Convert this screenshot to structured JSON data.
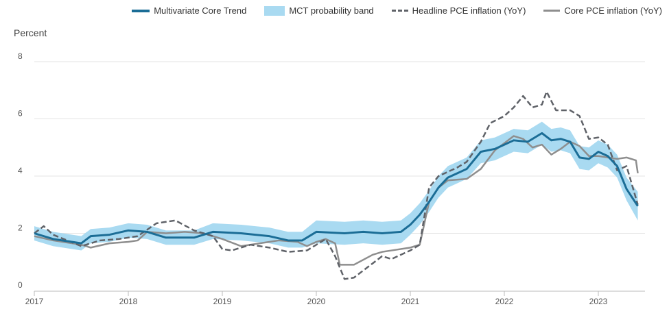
{
  "chart_data": {
    "type": "line",
    "title": "",
    "ylabel": "Percent",
    "xlabel": "",
    "xlim": [
      2017,
      2023.6
    ],
    "ylim": [
      0,
      8
    ],
    "yticks": [
      "0",
      "2",
      "4",
      "6",
      "8"
    ],
    "xticks": [
      "2017",
      "2018",
      "2019",
      "2020",
      "2021",
      "2022",
      "2023"
    ],
    "grid": "horizontal",
    "legend_position": "top-right",
    "colors": {
      "mct": "#1b6d96",
      "band": "#a9daf1",
      "headline": "#5f6268",
      "core": "#8e8e8e"
    },
    "series": [
      {
        "name": "Multivariate Core Trend",
        "style": "solid",
        "x": [
          2017.0,
          2017.2,
          2017.5,
          2017.6,
          2017.8,
          2018.0,
          2018.2,
          2018.4,
          2018.7,
          2018.9,
          2019.2,
          2019.5,
          2019.7,
          2019.85,
          2020.0,
          2020.3,
          2020.5,
          2020.7,
          2020.9,
          2021.0,
          2021.1,
          2021.2,
          2021.3,
          2021.4,
          2021.5,
          2021.6,
          2021.75,
          2021.9,
          2022.0,
          2022.1,
          2022.25,
          2022.4,
          2022.5,
          2022.6,
          2022.7,
          2022.8,
          2022.9,
          2023.0,
          2023.1,
          2023.2,
          2023.3,
          2023.42
        ],
        "y": [
          2.0,
          1.8,
          1.65,
          1.9,
          1.95,
          2.1,
          2.05,
          1.85,
          1.85,
          2.05,
          2.0,
          1.9,
          1.75,
          1.75,
          2.05,
          2.0,
          2.05,
          2.0,
          2.05,
          2.3,
          2.65,
          3.1,
          3.6,
          3.95,
          4.1,
          4.25,
          4.85,
          4.95,
          5.1,
          5.25,
          5.2,
          5.5,
          5.25,
          5.3,
          5.2,
          4.65,
          4.6,
          4.85,
          4.7,
          4.35,
          3.55,
          2.95
        ]
      },
      {
        "name": "MCT probability band",
        "style": "band",
        "x": [
          2017.0,
          2017.2,
          2017.5,
          2017.6,
          2017.8,
          2018.0,
          2018.2,
          2018.4,
          2018.7,
          2018.9,
          2019.2,
          2019.5,
          2019.7,
          2019.85,
          2020.0,
          2020.3,
          2020.5,
          2020.7,
          2020.9,
          2021.0,
          2021.1,
          2021.2,
          2021.3,
          2021.4,
          2021.5,
          2021.6,
          2021.75,
          2021.9,
          2022.0,
          2022.1,
          2022.25,
          2022.4,
          2022.5,
          2022.6,
          2022.7,
          2022.8,
          2022.9,
          2023.0,
          2023.1,
          2023.2,
          2023.3,
          2023.42
        ],
        "lower": [
          1.75,
          1.55,
          1.4,
          1.65,
          1.7,
          1.85,
          1.8,
          1.6,
          1.6,
          1.8,
          1.75,
          1.65,
          1.5,
          1.5,
          1.65,
          1.6,
          1.65,
          1.6,
          1.65,
          1.95,
          2.3,
          2.75,
          3.25,
          3.6,
          3.75,
          3.9,
          4.45,
          4.55,
          4.7,
          4.85,
          4.8,
          5.1,
          4.85,
          4.9,
          4.8,
          4.25,
          4.2,
          4.45,
          4.3,
          3.95,
          3.15,
          2.45
        ],
        "upper": [
          2.25,
          2.05,
          1.9,
          2.15,
          2.2,
          2.35,
          2.3,
          2.1,
          2.1,
          2.35,
          2.3,
          2.2,
          2.05,
          2.05,
          2.45,
          2.4,
          2.45,
          2.4,
          2.45,
          2.7,
          3.05,
          3.5,
          4.0,
          4.35,
          4.5,
          4.65,
          5.25,
          5.35,
          5.5,
          5.65,
          5.6,
          5.9,
          5.65,
          5.7,
          5.6,
          5.05,
          5.0,
          5.25,
          5.1,
          4.75,
          3.95,
          3.45
        ]
      },
      {
        "name": "Headline PCE inflation (YoY)",
        "style": "dashed",
        "x": [
          2017.0,
          2017.1,
          2017.2,
          2017.5,
          2017.7,
          2017.9,
          2018.1,
          2018.3,
          2018.5,
          2018.7,
          2018.9,
          2019.0,
          2019.1,
          2019.3,
          2019.5,
          2019.7,
          2019.9,
          2020.1,
          2020.2,
          2020.3,
          2020.4,
          2020.6,
          2020.7,
          2020.8,
          2021.0,
          2021.1,
          2021.2,
          2021.3,
          2021.5,
          2021.6,
          2021.75,
          2021.85,
          2022.0,
          2022.1,
          2022.2,
          2022.3,
          2022.4,
          2022.45,
          2022.55,
          2022.7,
          2022.8,
          2022.9,
          2023.0,
          2023.1,
          2023.2,
          2023.3,
          2023.42
        ],
        "y": [
          2.0,
          2.25,
          1.95,
          1.55,
          1.75,
          1.8,
          1.9,
          2.35,
          2.45,
          2.1,
          1.9,
          1.45,
          1.4,
          1.6,
          1.5,
          1.35,
          1.4,
          1.8,
          1.2,
          0.4,
          0.45,
          0.95,
          1.2,
          1.1,
          1.4,
          1.6,
          3.6,
          4.0,
          4.3,
          4.5,
          5.2,
          5.85,
          6.1,
          6.4,
          6.8,
          6.4,
          6.5,
          6.95,
          6.3,
          6.3,
          6.1,
          5.3,
          5.35,
          5.1,
          4.2,
          4.35,
          3.0
        ]
      },
      {
        "name": "Core PCE inflation (YoY)",
        "style": "solid",
        "x": [
          2017.0,
          2017.2,
          2017.5,
          2017.6,
          2017.8,
          2018.0,
          2018.1,
          2018.2,
          2018.4,
          2018.6,
          2018.8,
          2019.0,
          2019.2,
          2019.5,
          2019.6,
          2019.8,
          2019.9,
          2020.0,
          2020.1,
          2020.2,
          2020.25,
          2020.4,
          2020.6,
          2020.7,
          2020.8,
          2021.0,
          2021.1,
          2021.2,
          2021.3,
          2021.4,
          2021.6,
          2021.75,
          2021.9,
          2022.0,
          2022.1,
          2022.2,
          2022.3,
          2022.4,
          2022.5,
          2022.6,
          2022.7,
          2022.8,
          2022.9,
          2023.0,
          2023.1,
          2023.2,
          2023.3,
          2023.4,
          2023.42
        ],
        "y": [
          1.9,
          1.75,
          1.6,
          1.5,
          1.65,
          1.7,
          1.75,
          2.05,
          2.0,
          2.05,
          2.0,
          1.8,
          1.55,
          1.7,
          1.75,
          1.7,
          1.55,
          1.7,
          1.8,
          1.65,
          0.9,
          0.9,
          1.25,
          1.35,
          1.4,
          1.5,
          1.6,
          3.1,
          3.6,
          3.85,
          3.9,
          4.25,
          4.9,
          5.15,
          5.4,
          5.3,
          5.0,
          5.1,
          4.75,
          4.95,
          5.2,
          5.05,
          4.7,
          4.7,
          4.65,
          4.6,
          4.65,
          4.55,
          4.1
        ]
      }
    ]
  }
}
